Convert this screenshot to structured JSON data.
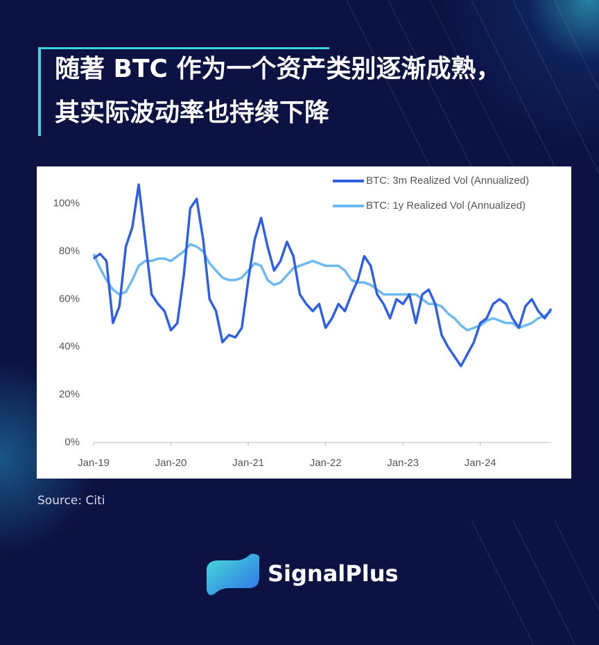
{
  "headline": "随著 BTC 作为一个资产类别逐渐成熟，其实际波动率也持续下降",
  "source": "Source: Citi",
  "brand": "SignalPlus",
  "chart_data": {
    "type": "line",
    "x": [
      "2019-01",
      "2019-02",
      "2019-03",
      "2019-04",
      "2019-05",
      "2019-06",
      "2019-07",
      "2019-08",
      "2019-09",
      "2019-10",
      "2019-11",
      "2019-12",
      "2020-01",
      "2020-02",
      "2020-03",
      "2020-04",
      "2020-05",
      "2020-06",
      "2020-07",
      "2020-08",
      "2020-09",
      "2020-10",
      "2020-11",
      "2020-12",
      "2021-01",
      "2021-02",
      "2021-03",
      "2021-04",
      "2021-05",
      "2021-06",
      "2021-07",
      "2021-08",
      "2021-09",
      "2021-10",
      "2021-11",
      "2021-12",
      "2022-01",
      "2022-02",
      "2022-03",
      "2022-04",
      "2022-05",
      "2022-06",
      "2022-07",
      "2022-08",
      "2022-09",
      "2022-10",
      "2022-11",
      "2022-12",
      "2023-01",
      "2023-02",
      "2023-03",
      "2023-04",
      "2023-05",
      "2023-06",
      "2023-07",
      "2023-08",
      "2023-09",
      "2023-10",
      "2023-11",
      "2023-12",
      "2024-01",
      "2024-02",
      "2024-03",
      "2024-04",
      "2024-05",
      "2024-06",
      "2024-07",
      "2024-08",
      "2024-09",
      "2024-10",
      "2024-11",
      "2024-12"
    ],
    "series": [
      {
        "name": "BTC: 3m Realized Vol (Annualized)",
        "color": "#2f5fe3",
        "values": [
          77,
          79,
          76,
          50,
          57,
          82,
          90,
          108,
          85,
          62,
          58,
          55,
          47,
          50,
          70,
          98,
          102,
          85,
          60,
          55,
          42,
          45,
          44,
          48,
          68,
          85,
          94,
          82,
          72,
          76,
          84,
          78,
          62,
          58,
          55,
          58,
          48,
          52,
          58,
          55,
          62,
          68,
          78,
          74,
          62,
          58,
          52,
          60,
          58,
          62,
          50,
          62,
          64,
          58,
          45,
          40,
          36,
          32,
          37,
          42,
          50,
          52,
          58,
          60,
          58,
          52,
          48,
          57,
          60,
          55,
          52,
          56
        ]
      },
      {
        "name": "BTC: 1y Realized Vol (Annualized)",
        "color": "#6db9f2",
        "values": [
          79,
          73,
          68,
          64,
          62,
          63,
          68,
          74,
          76,
          76,
          77,
          77,
          76,
          78,
          80,
          83,
          82,
          80,
          75,
          72,
          69,
          68,
          68,
          69,
          72,
          75,
          74,
          68,
          66,
          67,
          70,
          73,
          74,
          75,
          76,
          75,
          74,
          74,
          74,
          72,
          68,
          67,
          67,
          66,
          64,
          62,
          62,
          62,
          62,
          62,
          62,
          60,
          58,
          58,
          57,
          54,
          52,
          49,
          47,
          48,
          49,
          51,
          52,
          51,
          50,
          50,
          48,
          49,
          50,
          52,
          53,
          55
        ]
      }
    ],
    "xlim": [
      "2019-01",
      "2024-12"
    ],
    "xticks": [
      {
        "value": "2019-01",
        "label": "Jan-19"
      },
      {
        "value": "2020-01",
        "label": "Jan-20"
      },
      {
        "value": "2021-01",
        "label": "Jan-21"
      },
      {
        "value": "2022-01",
        "label": "Jan-22"
      },
      {
        "value": "2023-01",
        "label": "Jan-23"
      },
      {
        "value": "2024-01",
        "label": "Jan-24"
      }
    ],
    "ylim": [
      0,
      115
    ],
    "yticks": [
      {
        "value": 0,
        "label": "0%"
      },
      {
        "value": 20,
        "label": "20%"
      },
      {
        "value": 40,
        "label": "40%"
      },
      {
        "value": 60,
        "label": "60%"
      },
      {
        "value": 80,
        "label": "80%"
      },
      {
        "value": 100,
        "label": "100%"
      }
    ],
    "legend": "upper right",
    "grid": false
  }
}
